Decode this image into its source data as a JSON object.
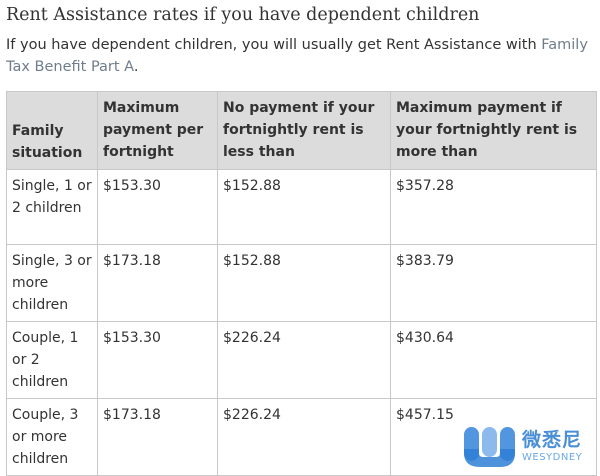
{
  "heading": "Rent Assistance rates if you have dependent children",
  "intro": {
    "text": "If you have dependent children, you will usually get Rent Assistance with ",
    "link": "Family Tax Benefit Part A",
    "suffix": "."
  },
  "table": {
    "headers": [
      "Family situation",
      "Maximum payment per fortnight",
      "No payment if your fortnightly rent is less than",
      "Maximum payment if your fortnightly rent is more than"
    ],
    "rows": [
      [
        "Single, 1 or 2 children",
        "$153.30",
        "$152.88",
        "$357.28"
      ],
      [
        "Single, 3 or more children",
        "$173.18",
        "$152.88",
        "$383.79"
      ],
      [
        "Couple, 1 or 2 children",
        "$153.30",
        "$226.24",
        "$430.64"
      ],
      [
        "Couple, 3 or more children",
        "$173.18",
        "$226.24",
        "$457.15"
      ]
    ]
  },
  "watermark": {
    "cn": "微悉尼",
    "en": "WESYDNEY",
    "color": "#4a8fd6"
  }
}
